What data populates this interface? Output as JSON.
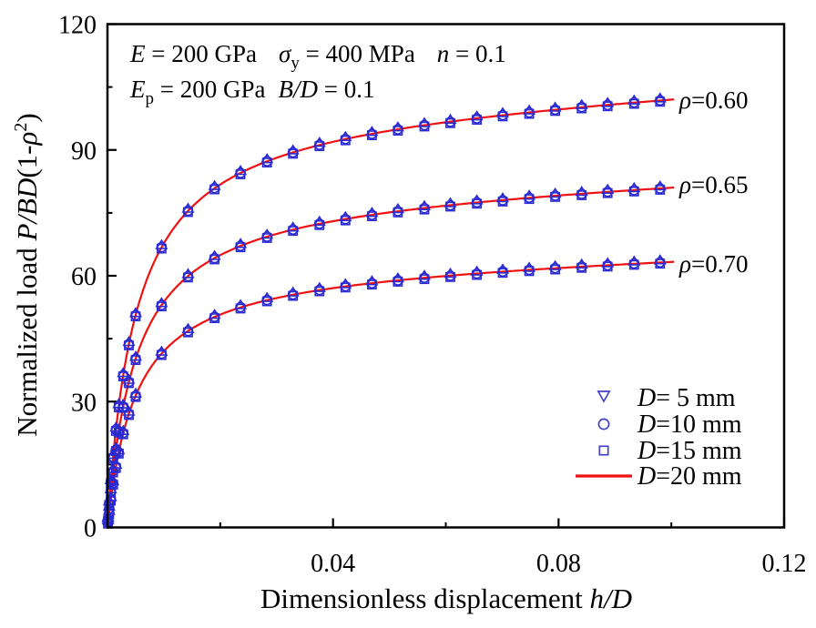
{
  "chart_data": {
    "type": "line",
    "title": "",
    "xlabel": {
      "plain": "Dimensionless displacement ",
      "italic": "h/D"
    },
    "ylabel": {
      "plain": "Normalized load ",
      "italic": "P/BD",
      "paren": "(1-",
      "rho": "ρ",
      "sup": "2",
      "close": ")"
    },
    "xlim": [
      0,
      0.12
    ],
    "ylim": [
      0,
      120
    ],
    "x_major_ticks": [
      0.04,
      0.08,
      0.12
    ],
    "x_major_tick_labels": [
      "0.04",
      "0.08",
      "0.12"
    ],
    "x_minor_ticks": [
      0.02,
      0.06,
      0.1
    ],
    "y_major_ticks": [
      0,
      30,
      60,
      90,
      120
    ],
    "y_major_tick_labels": [
      "0",
      "30",
      "60",
      "90",
      "120"
    ],
    "y_minor_ticks": [
      15,
      45,
      75,
      105
    ],
    "grid": "off",
    "legend_position": "inside-lower-right",
    "annotation": {
      "line1": {
        "p1": "E",
        "p2": " = 200 GPa",
        "p3": "σ",
        "p4": "y",
        "p5": " = 400 MPa",
        "p6": "n",
        "p7": " = 0.1"
      },
      "line2": {
        "p1": "E",
        "p2": "p",
        "p3": " = 200 GPa",
        "p4": "B/D",
        "p5": " = 0.1"
      }
    },
    "h": [
      0.0001,
      0.0003,
      0.0006,
      0.001,
      0.0015,
      0.002,
      0.0028,
      0.0038,
      0.005,
      0.0096,
      0.0143,
      0.019,
      0.0236,
      0.0283,
      0.0329,
      0.0376,
      0.0422,
      0.0469,
      0.0515,
      0.0562,
      0.0608,
      0.0655,
      0.0701,
      0.0748,
      0.0794,
      0.0841,
      0.0887,
      0.0934,
      0.098
    ],
    "series": [
      {
        "label_rho": "ρ",
        "label_val": "=0.60",
        "p": [
          2.0,
          5.7,
          10.8,
          16.8,
          23.3,
          28.9,
          36.3,
          43.7,
          50.6,
          66.8,
          75.5,
          80.9,
          84.5,
          87.3,
          89.4,
          91.2,
          92.6,
          93.8,
          94.9,
          95.9,
          96.7,
          97.5,
          98.3,
          98.9,
          99.6,
          100.2,
          100.7,
          101.3,
          101.8
        ]
      },
      {
        "label_rho": "ρ",
        "label_val": "=0.65",
        "p": [
          1.6,
          4.5,
          8.6,
          13.4,
          18.5,
          22.9,
          28.8,
          34.7,
          40.2,
          53.0,
          59.9,
          64.2,
          67.1,
          69.3,
          71.0,
          72.4,
          73.5,
          74.5,
          75.4,
          76.1,
          76.8,
          77.5,
          78.0,
          78.6,
          79.1,
          79.5,
          80.0,
          80.4,
          80.8
        ]
      },
      {
        "label_rho": "ρ",
        "label_val": "=0.70",
        "p": [
          1.2,
          3.5,
          6.7,
          10.5,
          14.5,
          17.9,
          22.5,
          27.1,
          31.4,
          41.4,
          46.8,
          50.2,
          52.5,
          54.2,
          55.5,
          56.6,
          57.5,
          58.2,
          58.9,
          59.5,
          60.0,
          60.5,
          61.0,
          61.4,
          61.8,
          62.2,
          62.5,
          62.9,
          63.2
        ]
      }
    ],
    "legend": [
      {
        "marker": "triangle",
        "d": "D",
        "rest": "= 5 mm"
      },
      {
        "marker": "circle",
        "d": "D",
        "rest": "=10 mm"
      },
      {
        "marker": "square",
        "d": "D",
        "rest": "=15 mm"
      },
      {
        "marker": "line",
        "d": "D",
        "rest": "=20 mm"
      }
    ],
    "colors": {
      "marker": "#2a2ad2",
      "legend_marker": "#4343c8",
      "line": "#ee1111",
      "axis": "#000000"
    },
    "fit_model": {
      "c": 0.05,
      "amp": 1.05,
      "w_hyp": 0.94,
      "w_lin": 0.06,
      "h_ref": 0.1,
      "h_end": 0.1005,
      "p_max": [
        102,
        81,
        63.3
      ]
    }
  }
}
